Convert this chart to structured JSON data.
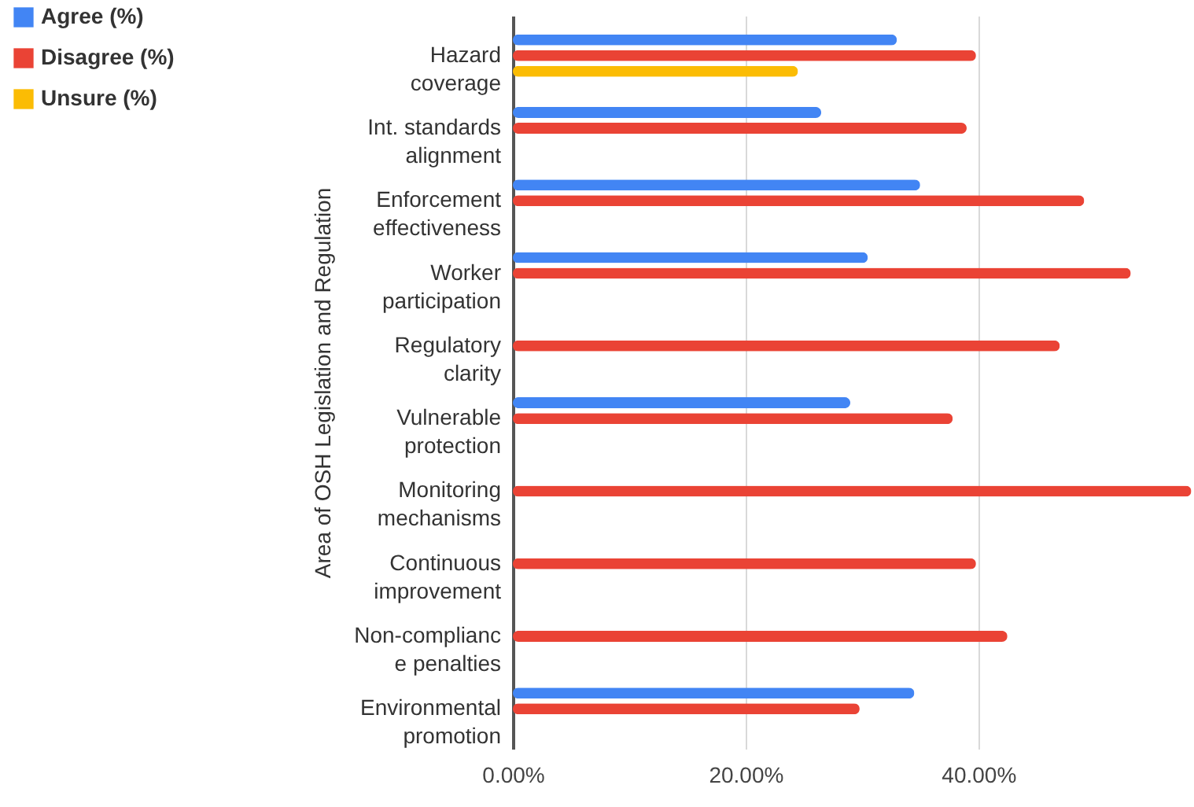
{
  "chart_data": {
    "type": "bar",
    "orientation": "horizontal",
    "ylabel": "Area of OSH Legislation and Regulation",
    "categories": [
      "Hazard\ncoverage",
      "Int. standards\nalignment",
      "Enforcement\neffectiveness",
      "Worker\nparticipation",
      "Regulatory\nclarity",
      "Vulnerable\nprotection",
      "Monitoring\nmechanisms",
      "Continuous\nimprovement",
      "Non-complianc\ne penalties",
      "Environmental\npromotion"
    ],
    "series": [
      {
        "name": "Agree (%)",
        "color": "#4285f4",
        "values": [
          33.0,
          26.5,
          35.0,
          30.5,
          null,
          29.0,
          null,
          null,
          null,
          34.5
        ]
      },
      {
        "name": "Disagree (%)",
        "color": "#ea4335",
        "values": [
          39.8,
          39.0,
          49.1,
          53.1,
          47.0,
          37.8,
          58.3,
          39.8,
          42.5,
          29.8
        ]
      },
      {
        "name": "Unsure (%)",
        "color": "#fbbc04",
        "values": [
          24.5,
          null,
          null,
          null,
          null,
          null,
          null,
          null,
          null,
          null
        ]
      }
    ],
    "xlim": [
      0,
      58.4
    ],
    "xticks": [
      {
        "value": 0,
        "label": "0.00%"
      },
      {
        "value": 20,
        "label": "20.00%"
      },
      {
        "value": 40,
        "label": "40.00%"
      }
    ],
    "grid": "x",
    "legend": "top left"
  }
}
